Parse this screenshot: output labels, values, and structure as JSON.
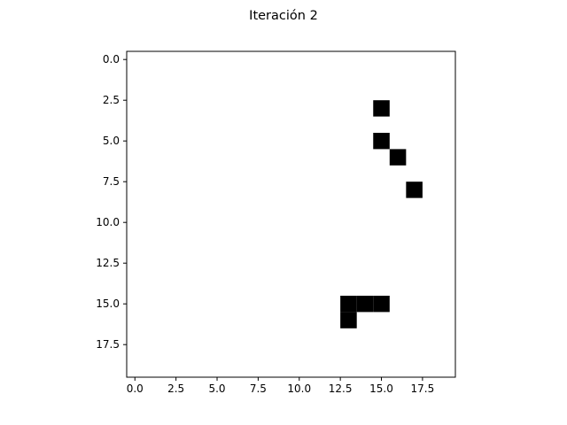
{
  "chart_data": {
    "type": "heatmap",
    "title": "Iteración 2",
    "grid_size": [
      20,
      20
    ],
    "xlim": [
      -0.5,
      19.5
    ],
    "ylim": [
      19.5,
      -0.5
    ],
    "y_axis_inverted": true,
    "grid": false,
    "colormap": {
      "empty": "#ffffff",
      "filled": "#000000"
    },
    "x_ticks": [
      0.0,
      2.5,
      5.0,
      7.5,
      10.0,
      12.5,
      15.0,
      17.5
    ],
    "x_tick_labels": [
      "0.0",
      "2.5",
      "5.0",
      "7.5",
      "10.0",
      "12.5",
      "15.0",
      "17.5"
    ],
    "y_ticks": [
      0.0,
      2.5,
      5.0,
      7.5,
      10.0,
      12.5,
      15.0,
      17.5
    ],
    "y_tick_labels": [
      "0.0",
      "2.5",
      "5.0",
      "7.5",
      "10.0",
      "12.5",
      "15.0",
      "17.5"
    ],
    "filled_cells": [
      {
        "row": 3,
        "col": 15
      },
      {
        "row": 5,
        "col": 15
      },
      {
        "row": 6,
        "col": 16
      },
      {
        "row": 8,
        "col": 17
      },
      {
        "row": 15,
        "col": 13
      },
      {
        "row": 15,
        "col": 14
      },
      {
        "row": 15,
        "col": 15
      },
      {
        "row": 16,
        "col": 13
      }
    ]
  }
}
